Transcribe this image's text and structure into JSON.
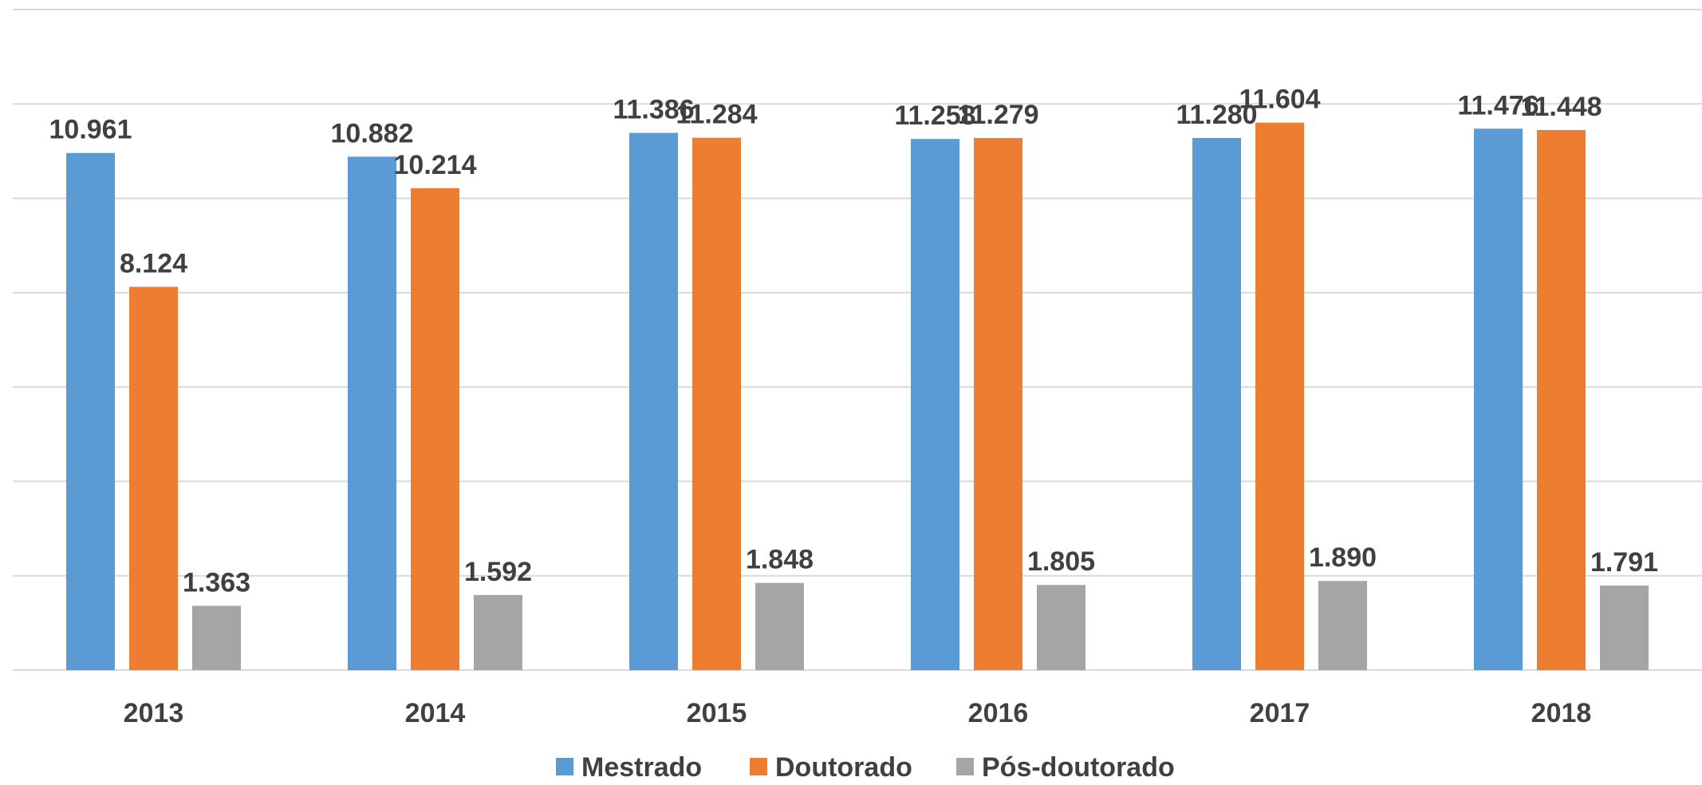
{
  "chart_data": {
    "type": "bar",
    "categories": [
      "2013",
      "2014",
      "2015",
      "2016",
      "2017",
      "2018"
    ],
    "series": [
      {
        "name": "Mestrado",
        "color": "#5b9bd5",
        "values": [
          10961,
          10882,
          11386,
          11258,
          11280,
          11476
        ],
        "value_labels": [
          "10.961",
          "10.882",
          "11.386",
          "11.258",
          "11.280",
          "11.476"
        ]
      },
      {
        "name": "Doutorado",
        "color": "#ed7d31",
        "values": [
          8124,
          10214,
          11284,
          11279,
          11604,
          11448
        ],
        "value_labels": [
          "8.124",
          "10.214",
          "11.284",
          "11.279",
          "11.604",
          "11.448"
        ]
      },
      {
        "name": "Pós-doutorado",
        "color": "#a5a5a5",
        "values": [
          1363,
          1592,
          1848,
          1805,
          1890,
          1791
        ],
        "value_labels": [
          "1.363",
          "1.592",
          "1.848",
          "1.805",
          "1.890",
          "1.791"
        ]
      }
    ],
    "ylim": [
      0,
      14000
    ],
    "yticks": [
      0,
      2000,
      4000,
      6000,
      8000,
      10000,
      12000,
      14000
    ],
    "grid": true,
    "legend": "bottom"
  }
}
